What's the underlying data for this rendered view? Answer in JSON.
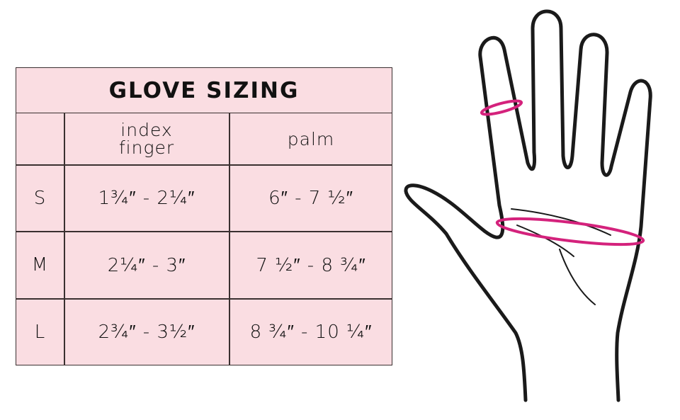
{
  "title": "GLOVE SIZING",
  "headers": [
    "",
    "index\nfinger",
    "palm"
  ],
  "header_index_line1": "index",
  "header_index_line2": "finger",
  "header_palm": "palm",
  "rows": [
    {
      "size": "S",
      "index_finger": "1¾″ - 2¼″",
      "palm": "6″ - 7 ½″"
    },
    {
      "size": "M",
      "index_finger": "2¼″ - 3″",
      "palm": "7 ½″ - 8 ¾″"
    },
    {
      "size": "L",
      "index_finger": "2¾″ - 3½″",
      "palm": "8 ¾″ - 10 ¼″"
    }
  ],
  "colors": {
    "table_bg": "#fadde2",
    "measure_band": "#d4227c",
    "outline": "#1a1a1a"
  },
  "illustration": "hand-outline-with-index-finger-and-palm-measure-bands"
}
